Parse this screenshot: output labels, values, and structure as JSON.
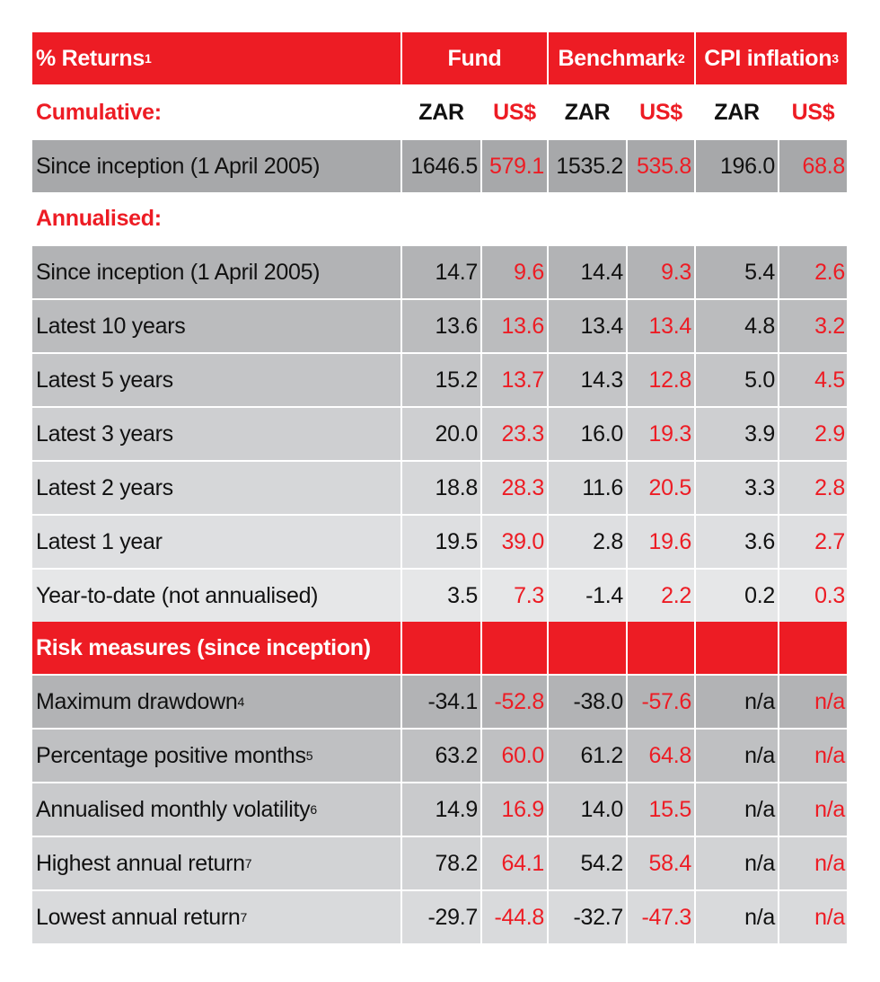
{
  "header": {
    "title": "% Returns",
    "title_sup": "1",
    "groups": [
      {
        "label": "Fund",
        "sup": ""
      },
      {
        "label": "Benchmark",
        "sup": "2"
      },
      {
        "label": "CPI inflation",
        "sup": "3"
      }
    ]
  },
  "subheader": {
    "label": "Cumulative:",
    "currencies": [
      "ZAR",
      "US$",
      "ZAR",
      "US$",
      "ZAR",
      "US$"
    ]
  },
  "cumulative": [
    {
      "label": "Since inception (1 April 2005)",
      "sup": "",
      "values": [
        "1646.5",
        "579.1",
        "1535.2",
        "535.8",
        "196.0",
        "68.8"
      ],
      "bg": "#a7a8aa"
    }
  ],
  "annualised_label": "Annualised:",
  "annualised": [
    {
      "label": "Since inception (1 April 2005)",
      "sup": "",
      "values": [
        "14.7",
        "9.6",
        "14.4",
        "9.3",
        "5.4",
        "2.6"
      ],
      "bg": "#b2b3b5"
    },
    {
      "label": "Latest 10 years",
      "sup": "",
      "values": [
        "13.6",
        "13.6",
        "13.4",
        "13.4",
        "4.8",
        "3.2"
      ],
      "bg": "#bbbcbe"
    },
    {
      "label": "Latest 5 years",
      "sup": "",
      "values": [
        "15.2",
        "13.7",
        "14.3",
        "12.8",
        "5.0",
        "4.5"
      ],
      "bg": "#c4c5c7"
    },
    {
      "label": "Latest 3 years",
      "sup": "",
      "values": [
        "20.0",
        "23.3",
        "16.0",
        "19.3",
        "3.9",
        "2.9"
      ],
      "bg": "#cecfd1"
    },
    {
      "label": "Latest 2 years",
      "sup": "",
      "values": [
        "18.8",
        "28.3",
        "11.6",
        "20.5",
        "3.3",
        "2.8"
      ],
      "bg": "#d6d7d9"
    },
    {
      "label": "Latest 1 year",
      "sup": "",
      "values": [
        "19.5",
        "39.0",
        "2.8",
        "19.6",
        "3.6",
        "2.7"
      ],
      "bg": "#dedfe1"
    },
    {
      "label": "Year-to-date (not annualised)",
      "sup": "",
      "values": [
        "3.5",
        "7.3",
        "-1.4",
        "2.2",
        "0.2",
        "0.3"
      ],
      "bg": "#e6e7e8"
    }
  ],
  "risk_label": "Risk measures (since inception)",
  "risk": [
    {
      "label": "Maximum drawdown",
      "sup": "4",
      "values": [
        "-34.1",
        "-52.8",
        "-38.0",
        "-57.6",
        "n/a",
        "n/a"
      ],
      "bg": "#b2b3b5"
    },
    {
      "label": "Percentage positive months",
      "sup": "5",
      "values": [
        "63.2",
        "60.0",
        "61.2",
        "64.8",
        "n/a",
        "n/a"
      ],
      "bg": "#bfc0c2"
    },
    {
      "label": "Annualised monthly volatility",
      "sup": "6",
      "values": [
        "14.9",
        "16.9",
        "14.0",
        "15.5",
        "n/a",
        "n/a"
      ],
      "bg": "#c9cacc"
    },
    {
      "label": "Highest annual return",
      "sup": "7",
      "values": [
        "78.2",
        "64.1",
        "54.2",
        "58.4",
        "n/a",
        "n/a"
      ],
      "bg": "#d2d3d5"
    },
    {
      "label": "Lowest annual return",
      "sup": "7",
      "values": [
        "-29.7",
        "-44.8",
        "-32.7",
        "-47.3",
        "n/a",
        "n/a"
      ],
      "bg": "#d9dadc"
    }
  ],
  "colors": {
    "accent_red": "#ed1c24",
    "text": "#111111"
  }
}
